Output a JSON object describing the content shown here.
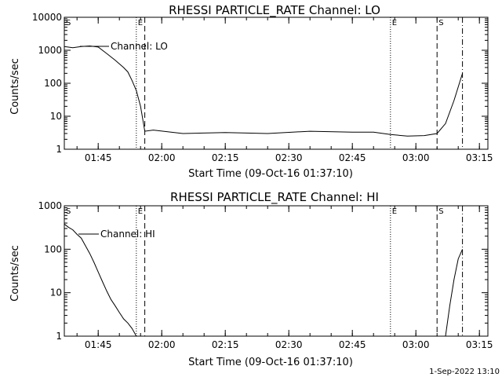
{
  "footer_timestamp": "1-Sep-2022 13:10",
  "chart_data": [
    {
      "type": "line",
      "title": "RHESSI PARTICLE_RATE Channel: LO",
      "xlabel": "Start Time (09-Oct-16 01:37:10)",
      "ylabel": "Counts/sec",
      "yscale": "log",
      "ylim": [
        1,
        10000
      ],
      "xlim_minutes_after_0137": [
        0,
        100
      ],
      "y_tick_labels": [
        "1",
        "10",
        "100",
        "1000",
        "10000"
      ],
      "x_tick_labels": [
        "01:45",
        "02:00",
        "02:15",
        "02:30",
        "02:45",
        "03:00",
        "03:15"
      ],
      "legend_label": "Channel: LO",
      "markers": [
        {
          "label": "E",
          "style": "dotted",
          "time": "01:54"
        },
        {
          "label": "",
          "style": "dashed",
          "time": "01:56"
        },
        {
          "label": "E",
          "style": "dotted",
          "time": "02:54"
        },
        {
          "label": "S",
          "style": "dashed",
          "time": "03:05"
        },
        {
          "label": "",
          "style": "dashdot",
          "time": "03:11"
        }
      ],
      "series": [
        {
          "x": [
            "01:37",
            "01:39",
            "01:41",
            "01:43",
            "01:45",
            "01:47",
            "01:49",
            "01:51",
            "01:52",
            "01:53",
            "01:54",
            "01:55",
            "01:56",
            "01:58",
            "02:05",
            "02:15",
            "02:25",
            "02:35",
            "02:45",
            "02:50",
            "02:54",
            "02:58",
            "03:02",
            "03:05",
            "03:07",
            "03:09",
            "03:11"
          ],
          "y": [
            1300,
            1200,
            1300,
            1350,
            1250,
            800,
            500,
            300,
            220,
            120,
            60,
            20,
            3.5,
            3.8,
            3,
            3.2,
            3,
            3.5,
            3.3,
            3.3,
            2.8,
            2.5,
            2.6,
            3,
            6,
            30,
            200
          ]
        }
      ]
    },
    {
      "type": "line",
      "title": "RHESSI PARTICLE_RATE Channel: HI",
      "xlabel": "Start Time (09-Oct-16 01:37:10)",
      "ylabel": "Counts/sec",
      "yscale": "log",
      "ylim": [
        1,
        1000
      ],
      "xlim_minutes_after_0137": [
        0,
        100
      ],
      "y_tick_labels": [
        "1",
        "10",
        "100",
        "1000"
      ],
      "x_tick_labels": [
        "01:45",
        "02:00",
        "02:15",
        "02:30",
        "02:45",
        "03:00",
        "03:15"
      ],
      "legend_label": "Channel: HI",
      "markers": [
        {
          "label": "E",
          "style": "dotted",
          "time": "01:54"
        },
        {
          "label": "",
          "style": "dashed",
          "time": "01:56"
        },
        {
          "label": "E",
          "style": "dotted",
          "time": "02:54"
        },
        {
          "label": "S",
          "style": "dashed",
          "time": "03:05"
        },
        {
          "label": "",
          "style": "dashdot",
          "time": "03:11"
        }
      ],
      "series": [
        {
          "x": [
            "01:37",
            "01:38",
            "01:39",
            "01:40",
            "01:41",
            "01:42",
            "01:43",
            "01:44",
            "01:45",
            "01:46",
            "01:47",
            "01:48",
            "01:49",
            "01:50",
            "01:51",
            "01:52",
            "01:53",
            "01:54",
            "03:07",
            "03:08",
            "03:09",
            "03:10",
            "03:11"
          ],
          "y": [
            380,
            320,
            280,
            220,
            180,
            120,
            80,
            50,
            30,
            18,
            11,
            7,
            5,
            3.5,
            2.5,
            2,
            1.5,
            1,
            1,
            5,
            20,
            60,
            100
          ]
        }
      ]
    }
  ]
}
